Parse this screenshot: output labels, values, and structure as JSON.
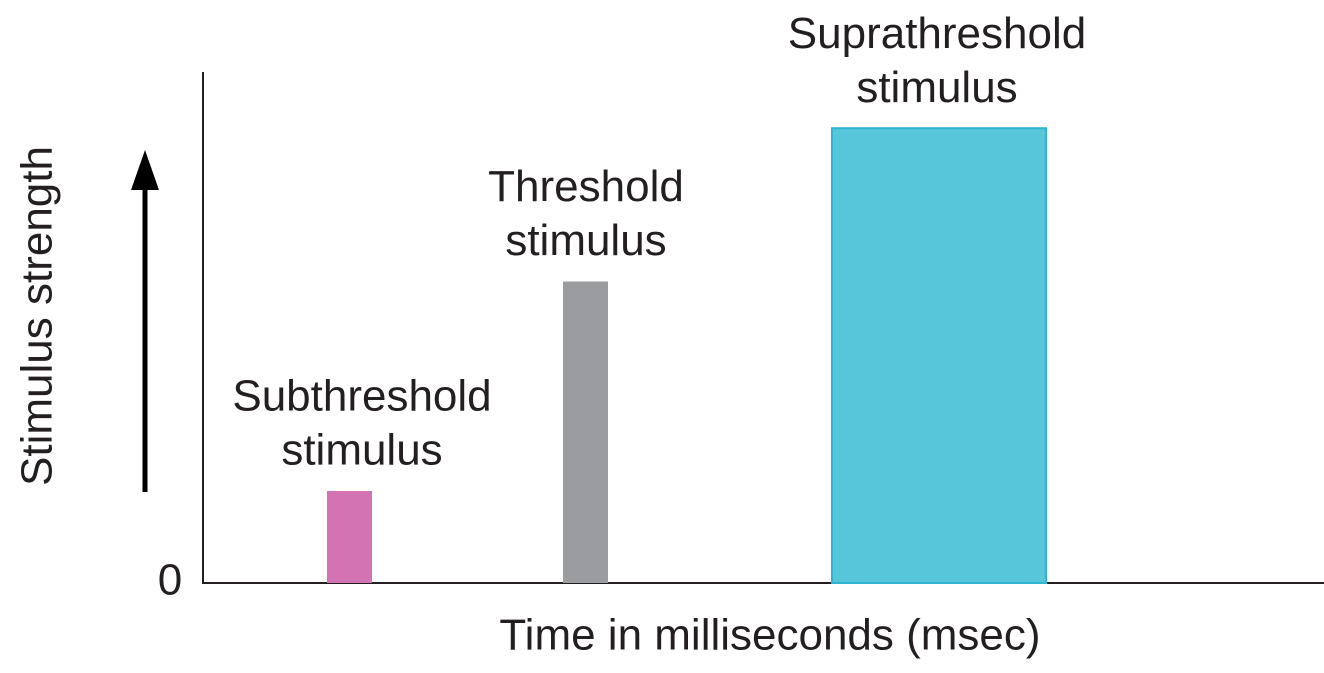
{
  "chart_data": {
    "type": "bar",
    "categories": [
      [
        "Subthreshold",
        "stimulus"
      ],
      [
        "Threshold",
        "stimulus"
      ],
      [
        "Suprathreshold",
        "stimulus"
      ]
    ],
    "values": [
      18,
      59,
      89
    ],
    "colors": [
      "#d473b3",
      "#9b9c9f",
      "#57c6da"
    ],
    "x_label": "Time in milliseconds (msec)",
    "y_label": "Stimulus strength",
    "ylim": [
      0,
      100
    ],
    "yticks": [
      0
    ]
  }
}
